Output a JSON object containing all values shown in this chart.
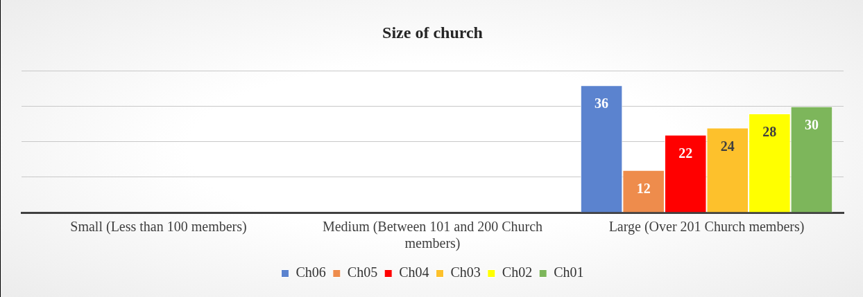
{
  "chart_data": {
    "type": "bar",
    "title": "Size of church",
    "grid": "y",
    "legend": "bottom",
    "data_labels": true,
    "tick_labels": "x",
    "categories": [
      "Small (Less than 100 members)",
      "Medium (Between 101 and 200 Church members)",
      "Large (Over 201 Church members)"
    ],
    "series": [
      {
        "name": "Ch06",
        "color": "#5b83cf",
        "values": [
          null,
          null,
          36
        ]
      },
      {
        "name": "Ch05",
        "color": "#ee8c4c",
        "values": [
          null,
          null,
          12
        ]
      },
      {
        "name": "Ch04",
        "color": "#ff0000",
        "values": [
          null,
          null,
          22
        ]
      },
      {
        "name": "Ch03",
        "color": "#fdc12c",
        "values": [
          null,
          null,
          24
        ]
      },
      {
        "name": "Ch02",
        "color": "#ffff00",
        "values": [
          null,
          null,
          28
        ]
      },
      {
        "name": "Ch01",
        "color": "#7db65b",
        "values": [
          null,
          null,
          30
        ]
      }
    ]
  }
}
